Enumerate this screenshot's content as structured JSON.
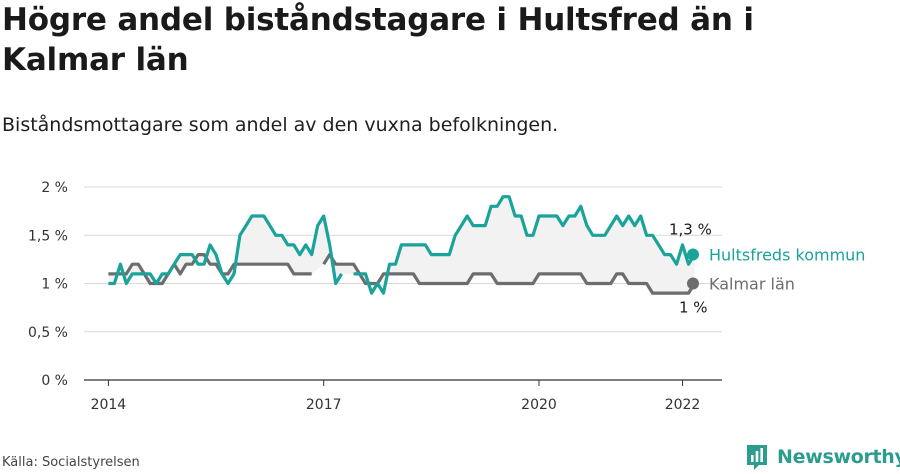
{
  "title": "Högre andel biståndstagare i Hultsfred än i Kalmar län",
  "subtitle": "Biståndsmottagare som andel av den vuxna befolkningen.",
  "source": "Källa: Socialstyrelsen",
  "brand": "Newsworthy",
  "colors": {
    "hultsfred": "#1aa39a",
    "kalmar": "#6d6d6d",
    "fill": "#f2f2f2",
    "brand": "#2a9d8f"
  },
  "chart_data": {
    "type": "line",
    "title": "Högre andel biståndstagare i Hultsfred än i Kalmar län",
    "subtitle": "Biståndsmottagare som andel av den vuxna befolkningen.",
    "xlabel": "",
    "ylabel": "",
    "xlim": [
      2014.0,
      2022.3
    ],
    "ylim": [
      0,
      2
    ],
    "y_ticks": [
      0,
      0.5,
      1,
      1.5,
      2
    ],
    "y_tick_labels": [
      "0 %",
      "0,5 %",
      "1 %",
      "1,5 %",
      "2 %"
    ],
    "x_ticks": [
      2014,
      2017,
      2020,
      2022
    ],
    "x_tick_labels": [
      "2014",
      "2017",
      "2020",
      "2022"
    ],
    "grid": "horizontal",
    "legend": "end-of-line labels",
    "series": [
      {
        "name": "Hultsfreds kommun",
        "end_label": "1,3 %",
        "points": [
          [
            2014.0,
            1.0
          ],
          [
            2014.083,
            1.0
          ],
          [
            2014.167,
            1.2
          ],
          [
            2014.25,
            1.0
          ],
          [
            2014.333,
            1.1
          ],
          [
            2014.417,
            1.1
          ],
          [
            2014.5,
            1.1
          ],
          [
            2014.583,
            1.1
          ],
          [
            2014.667,
            1.0
          ],
          [
            2014.75,
            1.1
          ],
          [
            2014.833,
            1.1
          ],
          [
            2014.917,
            1.2
          ],
          [
            2015.0,
            1.3
          ],
          [
            2015.083,
            1.3
          ],
          [
            2015.167,
            1.3
          ],
          [
            2015.25,
            1.2
          ],
          [
            2015.333,
            1.2
          ],
          [
            2015.417,
            1.4
          ],
          [
            2015.5,
            1.3
          ],
          [
            2015.583,
            1.1
          ],
          [
            2015.667,
            1.0
          ],
          [
            2015.75,
            1.1
          ],
          [
            2015.833,
            1.5
          ],
          [
            2015.917,
            1.6
          ],
          [
            2016.0,
            1.7
          ],
          [
            2016.083,
            1.7
          ],
          [
            2016.167,
            1.7
          ],
          [
            2016.25,
            1.6
          ],
          [
            2016.333,
            1.5
          ],
          [
            2016.417,
            1.5
          ],
          [
            2016.5,
            1.4
          ],
          [
            2016.583,
            1.4
          ],
          [
            2016.667,
            1.3
          ],
          [
            2016.75,
            1.4
          ],
          [
            2016.833,
            1.3
          ],
          [
            2016.917,
            1.6
          ],
          [
            2017.0,
            1.7
          ],
          [
            2017.083,
            1.4
          ],
          [
            2017.167,
            1.0
          ],
          [
            2017.25,
            1.1
          ],
          [
            null,
            null
          ],
          [
            2017.417,
            1.1
          ],
          [
            2017.5,
            1.1
          ],
          [
            2017.583,
            1.1
          ],
          [
            2017.667,
            0.9
          ],
          [
            2017.75,
            1.0
          ],
          [
            2017.833,
            0.9
          ],
          [
            2017.917,
            1.2
          ],
          [
            2018.0,
            1.2
          ],
          [
            2018.083,
            1.4
          ],
          [
            2018.167,
            1.4
          ],
          [
            2018.25,
            1.4
          ],
          [
            2018.333,
            1.4
          ],
          [
            2018.417,
            1.4
          ],
          [
            2018.5,
            1.3
          ],
          [
            2018.583,
            1.3
          ],
          [
            2018.667,
            1.3
          ],
          [
            2018.75,
            1.3
          ],
          [
            2018.833,
            1.5
          ],
          [
            2018.917,
            1.6
          ],
          [
            2019.0,
            1.7
          ],
          [
            2019.083,
            1.6
          ],
          [
            2019.167,
            1.6
          ],
          [
            2019.25,
            1.6
          ],
          [
            2019.333,
            1.8
          ],
          [
            2019.417,
            1.8
          ],
          [
            2019.5,
            1.9
          ],
          [
            2019.583,
            1.9
          ],
          [
            2019.667,
            1.7
          ],
          [
            2019.75,
            1.7
          ],
          [
            2019.833,
            1.5
          ],
          [
            2019.917,
            1.5
          ],
          [
            2020.0,
            1.7
          ],
          [
            2020.083,
            1.7
          ],
          [
            2020.167,
            1.7
          ],
          [
            2020.25,
            1.7
          ],
          [
            2020.333,
            1.6
          ],
          [
            2020.417,
            1.7
          ],
          [
            2020.5,
            1.7
          ],
          [
            2020.583,
            1.8
          ],
          [
            2020.667,
            1.6
          ],
          [
            2020.75,
            1.5
          ],
          [
            2020.833,
            1.5
          ],
          [
            2020.917,
            1.5
          ],
          [
            2021.0,
            1.6
          ],
          [
            2021.083,
            1.7
          ],
          [
            2021.167,
            1.6
          ],
          [
            2021.25,
            1.7
          ],
          [
            2021.333,
            1.6
          ],
          [
            2021.417,
            1.7
          ],
          [
            2021.5,
            1.5
          ],
          [
            2021.583,
            1.5
          ],
          [
            2021.667,
            1.4
          ],
          [
            2021.75,
            1.3
          ],
          [
            2021.833,
            1.3
          ],
          [
            2021.917,
            1.2
          ],
          [
            2022.0,
            1.4
          ],
          [
            2022.083,
            1.2
          ],
          [
            2022.167,
            1.3
          ]
        ]
      },
      {
        "name": "Kalmar län",
        "end_label": "1 %",
        "points": [
          [
            2014.0,
            1.1
          ],
          [
            2014.083,
            1.1
          ],
          [
            2014.167,
            1.1
          ],
          [
            2014.25,
            1.1
          ],
          [
            2014.333,
            1.2
          ],
          [
            2014.417,
            1.2
          ],
          [
            2014.5,
            1.1
          ],
          [
            2014.583,
            1.0
          ],
          [
            2014.667,
            1.0
          ],
          [
            2014.75,
            1.0
          ],
          [
            2014.833,
            1.1
          ],
          [
            2014.917,
            1.2
          ],
          [
            2015.0,
            1.1
          ],
          [
            2015.083,
            1.2
          ],
          [
            2015.167,
            1.2
          ],
          [
            2015.25,
            1.3
          ],
          [
            2015.333,
            1.3
          ],
          [
            2015.417,
            1.2
          ],
          [
            2015.5,
            1.2
          ],
          [
            2015.583,
            1.1
          ],
          [
            2015.667,
            1.1
          ],
          [
            2015.75,
            1.2
          ],
          [
            2015.833,
            1.2
          ],
          [
            2015.917,
            1.2
          ],
          [
            2016.0,
            1.2
          ],
          [
            2016.083,
            1.2
          ],
          [
            2016.167,
            1.2
          ],
          [
            2016.25,
            1.2
          ],
          [
            2016.333,
            1.2
          ],
          [
            2016.417,
            1.2
          ],
          [
            2016.5,
            1.2
          ],
          [
            2016.583,
            1.1
          ],
          [
            2016.667,
            1.1
          ],
          [
            2016.75,
            1.1
          ],
          [
            2016.833,
            1.1
          ],
          [
            null,
            null
          ],
          [
            2017.0,
            1.2
          ],
          [
            2017.083,
            1.3
          ],
          [
            2017.167,
            1.2
          ],
          [
            2017.25,
            1.2
          ],
          [
            2017.333,
            1.2
          ],
          [
            2017.417,
            1.2
          ],
          [
            2017.5,
            1.1
          ],
          [
            2017.583,
            1.0
          ],
          [
            2017.667,
            1.0
          ],
          [
            2017.75,
            1.0
          ],
          [
            2017.833,
            1.1
          ],
          [
            2017.917,
            1.1
          ],
          [
            2018.0,
            1.1
          ],
          [
            2018.083,
            1.1
          ],
          [
            2018.167,
            1.1
          ],
          [
            2018.25,
            1.1
          ],
          [
            2018.333,
            1.0
          ],
          [
            2018.417,
            1.0
          ],
          [
            2018.5,
            1.0
          ],
          [
            2018.583,
            1.0
          ],
          [
            2018.667,
            1.0
          ],
          [
            2018.75,
            1.0
          ],
          [
            2018.833,
            1.0
          ],
          [
            2018.917,
            1.0
          ],
          [
            2019.0,
            1.0
          ],
          [
            2019.083,
            1.1
          ],
          [
            2019.167,
            1.1
          ],
          [
            2019.25,
            1.1
          ],
          [
            2019.333,
            1.1
          ],
          [
            2019.417,
            1.0
          ],
          [
            2019.5,
            1.0
          ],
          [
            2019.583,
            1.0
          ],
          [
            2019.667,
            1.0
          ],
          [
            2019.75,
            1.0
          ],
          [
            2019.833,
            1.0
          ],
          [
            2019.917,
            1.0
          ],
          [
            2020.0,
            1.1
          ],
          [
            2020.083,
            1.1
          ],
          [
            2020.167,
            1.1
          ],
          [
            2020.25,
            1.1
          ],
          [
            2020.333,
            1.1
          ],
          [
            2020.417,
            1.1
          ],
          [
            2020.5,
            1.1
          ],
          [
            2020.583,
            1.1
          ],
          [
            2020.667,
            1.0
          ],
          [
            2020.75,
            1.0
          ],
          [
            2020.833,
            1.0
          ],
          [
            2020.917,
            1.0
          ],
          [
            2021.0,
            1.0
          ],
          [
            2021.083,
            1.1
          ],
          [
            2021.167,
            1.1
          ],
          [
            2021.25,
            1.0
          ],
          [
            2021.333,
            1.0
          ],
          [
            2021.417,
            1.0
          ],
          [
            2021.5,
            1.0
          ],
          [
            2021.583,
            0.9
          ],
          [
            2021.667,
            0.9
          ],
          [
            2021.75,
            0.9
          ],
          [
            2021.833,
            0.9
          ],
          [
            2021.917,
            0.9
          ],
          [
            2022.0,
            0.9
          ],
          [
            2022.083,
            0.9
          ],
          [
            2022.167,
            1.0
          ]
        ]
      }
    ]
  }
}
